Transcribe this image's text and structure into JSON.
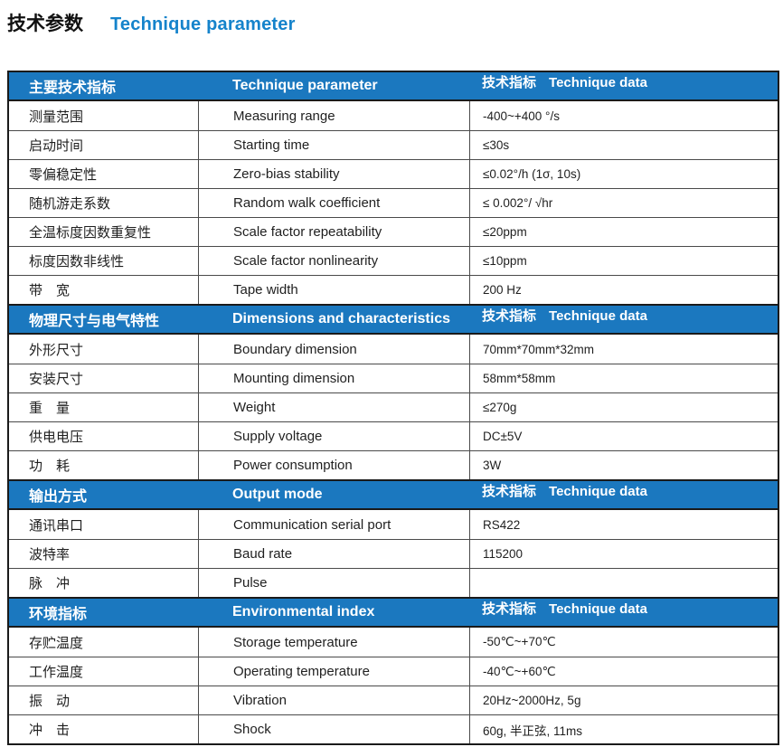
{
  "title": {
    "zh": "技术参数",
    "en": "Technique parameter"
  },
  "colors": {
    "title_blue": "#1583cb",
    "header_band_blue": "#1b78bf",
    "header_text": "#ffffff",
    "border_dark": "#1a1a1a",
    "row_divider": "#4a4a4a",
    "body_text": "#1f1f1f"
  },
  "table": {
    "sections": [
      {
        "header": {
          "zh": "主要技术指标",
          "en": "Technique parameter",
          "data_label_zh": "技术指标",
          "data_label_en": "Technique data"
        },
        "rows": [
          {
            "zh": "测量范围",
            "en": "Measuring range",
            "value": "-400~+400 °/s"
          },
          {
            "zh": "启动时间",
            "en": "Starting time",
            "value": "≤30s"
          },
          {
            "zh": "零偏稳定性",
            "en": "Zero-bias stability",
            "value": "≤0.02°/h (1σ, 10s)"
          },
          {
            "zh": "随机游走系数",
            "en": "Random walk coefficient",
            "value": "≤ 0.002°/ √hr"
          },
          {
            "zh": "全温标度因数重复性",
            "en": "Scale factor repeatability",
            "value": "≤20ppm"
          },
          {
            "zh": "标度因数非线性",
            "en": "Scale factor nonlinearity",
            "value": "≤10ppm"
          },
          {
            "zh": "带　宽",
            "en": "Tape width",
            "value": "200 Hz"
          }
        ]
      },
      {
        "header": {
          "zh": "物理尺寸与电气特性",
          "en": "Dimensions and characteristics",
          "data_label_zh": "技术指标",
          "data_label_en": "Technique data"
        },
        "rows": [
          {
            "zh": "外形尺寸",
            "en": "Boundary dimension",
            "value": "70mm*70mm*32mm"
          },
          {
            "zh": "安装尺寸",
            "en": "Mounting dimension",
            "value": "58mm*58mm"
          },
          {
            "zh": "重　量",
            "en": "Weight",
            "value": "≤270g"
          },
          {
            "zh": "供电电压",
            "en": "Supply voltage",
            "value": "DC±5V"
          },
          {
            "zh": "功　耗",
            "en": "Power consumption",
            "value": "3W"
          }
        ]
      },
      {
        "header": {
          "zh": "输出方式",
          "en": "Output mode",
          "data_label_zh": "技术指标",
          "data_label_en": "Technique data"
        },
        "rows": [
          {
            "zh": "通讯串口",
            "en": "Communication serial port",
            "value": "RS422"
          },
          {
            "zh": "波特率",
            "en": "Baud rate",
            "value": "115200"
          },
          {
            "zh": "脉　冲",
            "en": "Pulse",
            "value": ""
          }
        ]
      },
      {
        "header": {
          "zh": "环境指标",
          "en": "Environmental index",
          "data_label_zh": "技术指标",
          "data_label_en": "Technique data"
        },
        "rows": [
          {
            "zh": "存贮温度",
            "en": "Storage temperature",
            "value": "-50℃~+70℃"
          },
          {
            "zh": "工作温度",
            "en": "Operating temperature",
            "value": "-40℃~+60℃"
          },
          {
            "zh": "振　动",
            "en": "Vibration",
            "value": "20Hz~2000Hz, 5g"
          },
          {
            "zh": "冲　击",
            "en": "Shock",
            "value": "60g, 半正弦, 11ms"
          }
        ]
      }
    ]
  }
}
